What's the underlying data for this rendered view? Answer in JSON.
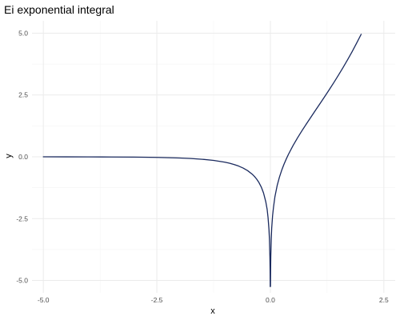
{
  "chart_data": {
    "type": "line",
    "title": "Ei exponential integral",
    "xlabel": "x",
    "ylabel": "y",
    "xlim": [
      -5.25,
      2.75
    ],
    "ylim": [
      -5.5,
      5.5
    ],
    "x_ticks": [
      -5.0,
      -2.5,
      0.0,
      2.5
    ],
    "x_tick_labels": [
      "-5.0",
      "-2.5",
      "0.0",
      "2.5"
    ],
    "y_ticks": [
      -5.0,
      -2.5,
      0.0,
      2.5,
      5.0
    ],
    "y_tick_labels": [
      "-5.0",
      "-2.5",
      "0.0",
      "2.5",
      "5.0"
    ],
    "grid": true,
    "legend": "none",
    "series": [
      {
        "color": "#1a2a5e",
        "x": [
          -5.0,
          -4.5,
          -4.0,
          -3.5,
          -3.0,
          -2.5,
          -2.0,
          -1.75,
          -1.5,
          -1.25,
          -1.0,
          -0.9,
          -0.8,
          -0.7,
          -0.6,
          -0.5,
          -0.4,
          -0.35,
          -0.3,
          -0.25,
          -0.2,
          -0.15,
          -0.1,
          -0.07,
          -0.05,
          -0.03,
          -0.02,
          -0.01,
          -0.006,
          -0.004,
          -0.003,
          0.003,
          0.004,
          0.006,
          0.01,
          0.02,
          0.03,
          0.05,
          0.07,
          0.1,
          0.15,
          0.2,
          0.25,
          0.3,
          0.35,
          0.4,
          0.5,
          0.6,
          0.7,
          0.8,
          0.9,
          1.0,
          1.1,
          1.2,
          1.3,
          1.4,
          1.5,
          1.6,
          1.7,
          1.8,
          1.9,
          2.0
        ],
        "y": [
          -0.0011,
          -0.002,
          -0.0038,
          -0.007,
          -0.013,
          -0.0249,
          -0.0489,
          -0.0694,
          -0.1,
          -0.1464,
          -0.2194,
          -0.2602,
          -0.3106,
          -0.3738,
          -0.4544,
          -0.5598,
          -0.7024,
          -0.7942,
          -0.9057,
          -1.0443,
          -1.2227,
          -1.4645,
          -1.8229,
          -2.1325,
          -2.4679,
          -2.9591,
          -3.3354,
          -4.0379,
          -4.5519,
          -4.9602,
          -5.25,
          -5.244,
          -4.9532,
          -4.542,
          -4.0179,
          -3.3154,
          -2.8791,
          -2.3679,
          -2.0325,
          -1.6228,
          -1.1641,
          -0.8218,
          -0.5425,
          -0.3027,
          -0.0912,
          0.1048,
          0.4542,
          0.7699,
          1.0649,
          1.3474,
          1.6231,
          1.8951,
          2.1674,
          2.4424,
          2.7214,
          3.0068,
          3.3013,
          3.6049,
          3.921,
          4.25,
          4.595,
          4.9542
        ]
      }
    ]
  }
}
